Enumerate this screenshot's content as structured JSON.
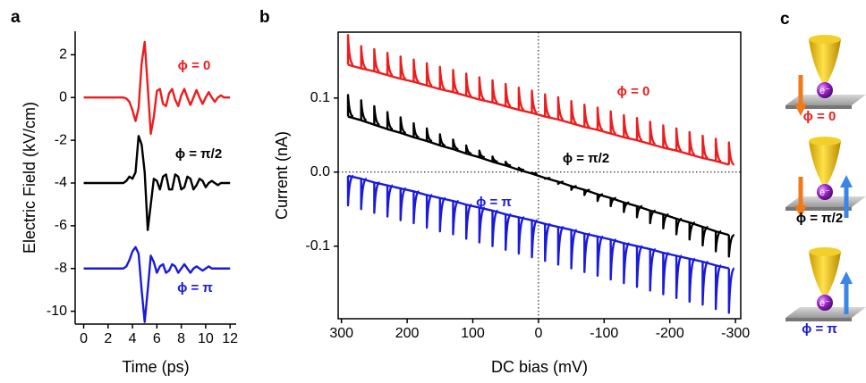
{
  "figure": {
    "panel_labels": [
      "a",
      "b",
      "c"
    ],
    "schematic": {
      "labels": [
        "ϕ = 0",
        "ϕ = π/2",
        "ϕ = π"
      ],
      "label_colors": [
        "#ee1c1c",
        "#000000",
        "#1a1adc"
      ],
      "electron_label": "e⁻"
    }
  },
  "chart_data": [
    {
      "type": "line",
      "x_label": "Time (ps)",
      "y_label": "Electric Field (kV/cm)",
      "x": [
        0,
        0.25,
        0.5,
        0.75,
        1,
        1.25,
        1.5,
        1.75,
        2,
        2.25,
        2.5,
        2.75,
        3,
        3.25,
        3.5,
        3.75,
        4,
        4.25,
        4.5,
        4.75,
        5,
        5.25,
        5.5,
        5.75,
        6,
        6.25,
        6.5,
        6.75,
        7,
        7.25,
        7.5,
        7.75,
        8,
        8.25,
        8.5,
        8.75,
        9,
        9.25,
        9.5,
        9.75,
        10,
        10.25,
        10.5,
        10.75,
        11,
        11.25,
        11.5,
        11.75,
        12
      ],
      "series": [
        {
          "name": "ϕ = 0",
          "color": "#ee1c1c",
          "values": [
            0,
            0,
            0,
            0,
            0,
            0,
            0,
            0,
            0,
            0,
            0,
            0,
            0,
            0,
            -0.05,
            -0.2,
            -0.6,
            -1.1,
            -0.5,
            1.6,
            2.6,
            0.5,
            -1.7,
            -0.9,
            0.3,
            0.4,
            -0.3,
            -0.4,
            0.2,
            0.4,
            -0.1,
            -0.4,
            0.1,
            0.4,
            0,
            -0.35,
            0,
            0.35,
            0,
            -0.3,
            0,
            0.25,
            0,
            -0.2,
            0,
            0.1,
            0,
            0,
            0
          ]
        },
        {
          "name": "ϕ = π/2",
          "color": "#000000",
          "values": [
            -4,
            -4,
            -4,
            -4,
            -4,
            -4,
            -4,
            -4,
            -4,
            -4,
            -4,
            -4,
            -4,
            -4,
            -3.9,
            -3.7,
            -3.8,
            -3.5,
            -1.8,
            -2.2,
            -3.5,
            -6.2,
            -5.0,
            -3.8,
            -3.9,
            -4.3,
            -3.7,
            -3.6,
            -4.3,
            -4.3,
            -3.6,
            -3.7,
            -4.3,
            -4.2,
            -3.7,
            -3.8,
            -4.3,
            -4.1,
            -3.8,
            -3.9,
            -4.2,
            -4.0,
            -3.9,
            -4.0,
            -4.1,
            -4.0,
            -4.0,
            -4.0,
            -4.0
          ]
        },
        {
          "name": "ϕ = π",
          "color": "#1a1adc",
          "values": [
            -8,
            -8,
            -8,
            -8,
            -8,
            -8,
            -8,
            -8,
            -8,
            -8,
            -8,
            -8,
            -8,
            -8,
            -7.9,
            -7.6,
            -7.2,
            -7.0,
            -7.3,
            -9.0,
            -10.5,
            -9.0,
            -7.4,
            -7.7,
            -8.2,
            -7.9,
            -7.8,
            -8.2,
            -8.1,
            -7.8,
            -7.9,
            -8.2,
            -8.0,
            -7.8,
            -8.0,
            -8.2,
            -8.0,
            -7.9,
            -8.0,
            -8.1,
            -8.0,
            -7.9,
            -8.0,
            -8.0,
            -8.0,
            -8.0,
            -8.0,
            -8.0,
            -8.0
          ]
        }
      ],
      "xlim": [
        -0.7,
        12.5
      ],
      "xticks": [
        0,
        2,
        4,
        6,
        8,
        10,
        12
      ],
      "ylim": [
        -10.6,
        3.1
      ],
      "yticks": [
        2,
        0,
        -2,
        -4,
        -6,
        -8,
        -10
      ]
    },
    {
      "type": "line",
      "x_label": "DC bias (mV)",
      "y_label": "Current (nA)",
      "zero_lines": true,
      "x": [
        290,
        270,
        250,
        230,
        210,
        190,
        170,
        150,
        130,
        110,
        90,
        70,
        50,
        30,
        10,
        -10,
        -30,
        -50,
        -70,
        -90,
        -110,
        -130,
        -150,
        -170,
        -190,
        -210,
        -230,
        -250,
        -270,
        -290
      ],
      "series": [
        {
          "name": "ϕ = 0",
          "color": "#ee1c1c",
          "values": [
            0.145,
            0.14,
            0.136,
            0.131,
            0.126,
            0.122,
            0.117,
            0.112,
            0.108,
            0.103,
            0.098,
            0.094,
            0.089,
            0.084,
            0.08,
            0.075,
            0.071,
            0.066,
            0.061,
            0.057,
            0.052,
            0.047,
            0.043,
            0.038,
            0.033,
            0.029,
            0.024,
            0.019,
            0.015,
            0.01
          ],
          "peaks": [
            0.185,
            0.17,
            0.166,
            0.161,
            0.156,
            0.152,
            0.147,
            0.142,
            0.138,
            0.133,
            0.128,
            0.124,
            0.119,
            0.114,
            0.11,
            0.105,
            0.101,
            0.096,
            0.091,
            0.087,
            0.082,
            0.077,
            0.073,
            0.068,
            0.063,
            0.059,
            0.054,
            0.049,
            0.045,
            0.04
          ]
        },
        {
          "name": "ϕ = π/2",
          "color": "#000000",
          "values": [
            0.075,
            0.07,
            0.064,
            0.058,
            0.053,
            0.047,
            0.042,
            0.036,
            0.031,
            0.025,
            0.02,
            0.014,
            0.009,
            0.003,
            -0.002,
            -0.008,
            -0.013,
            -0.019,
            -0.024,
            -0.03,
            -0.035,
            -0.041,
            -0.046,
            -0.052,
            -0.057,
            -0.063,
            -0.068,
            -0.074,
            -0.08,
            -0.085
          ],
          "peaks": [
            0.104,
            0.097,
            0.089,
            0.081,
            0.074,
            0.066,
            0.059,
            0.051,
            0.044,
            0.036,
            0.029,
            0.021,
            0.014,
            0.006,
            -0.001,
            -0.009,
            -0.016,
            -0.024,
            -0.031,
            -0.039,
            -0.046,
            -0.054,
            -0.061,
            -0.069,
            -0.076,
            -0.084,
            -0.091,
            -0.099,
            -0.107,
            -0.114
          ]
        },
        {
          "name": "ϕ = π",
          "color": "#1a1adc",
          "values": [
            -0.005,
            -0.009,
            -0.014,
            -0.018,
            -0.022,
            -0.026,
            -0.031,
            -0.035,
            -0.039,
            -0.044,
            -0.048,
            -0.052,
            -0.057,
            -0.061,
            -0.065,
            -0.07,
            -0.074,
            -0.078,
            -0.083,
            -0.087,
            -0.091,
            -0.096,
            -0.1,
            -0.104,
            -0.109,
            -0.113,
            -0.117,
            -0.121,
            -0.126,
            -0.13
          ],
          "peaks": [
            -0.045,
            -0.05,
            -0.055,
            -0.06,
            -0.065,
            -0.069,
            -0.075,
            -0.08,
            -0.084,
            -0.09,
            -0.095,
            -0.1,
            -0.105,
            -0.11,
            -0.115,
            -0.12,
            -0.125,
            -0.13,
            -0.135,
            -0.14,
            -0.145,
            -0.15,
            -0.155,
            -0.16,
            -0.165,
            -0.17,
            -0.175,
            -0.179,
            -0.185,
            -0.19
          ]
        }
      ],
      "xlim": [
        305,
        -308
      ],
      "xticks": [
        300,
        200,
        100,
        0,
        -100,
        -200,
        -300
      ],
      "ylim": [
        -0.198,
        0.189
      ],
      "yticks": [
        0.1,
        {
          "value": 0,
          "label": "0.0"
        },
        -0.1
      ]
    }
  ]
}
